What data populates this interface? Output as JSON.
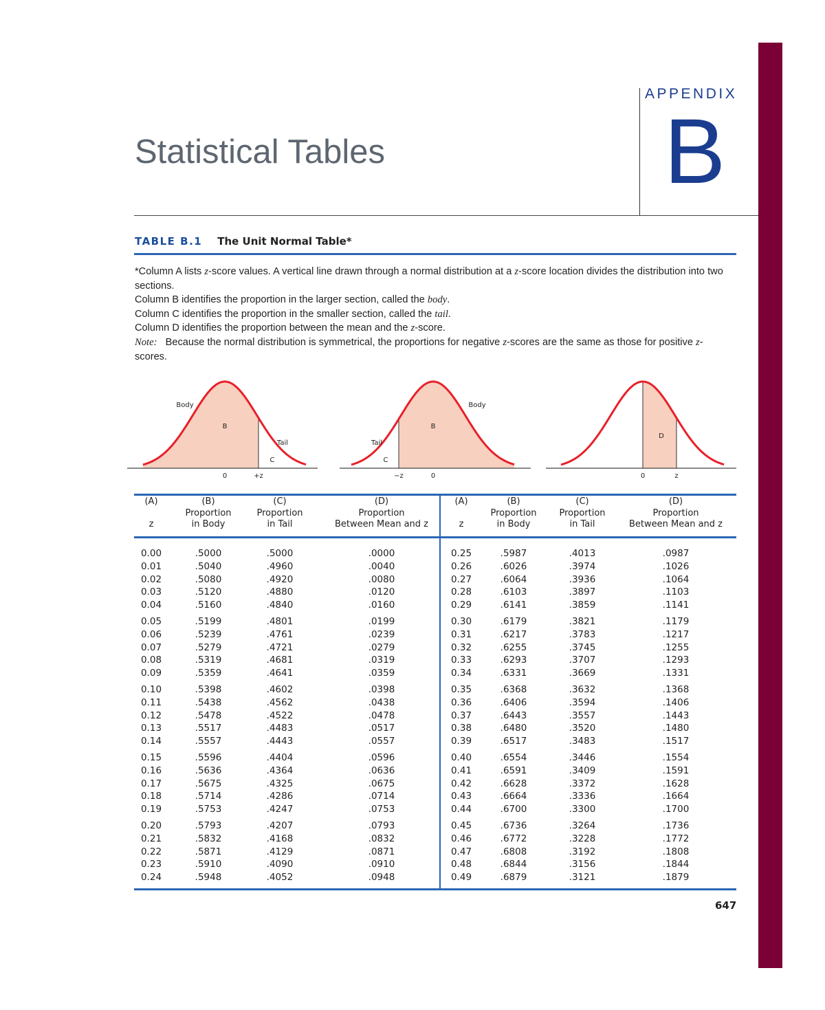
{
  "appendix": {
    "label": "APPENDIX",
    "letter": "B"
  },
  "page_title": "Statistical Tables",
  "table": {
    "number": "TABLE B.1",
    "title": "The Unit Normal Table*"
  },
  "intro": {
    "l1a": "*Column A lists ",
    "z": "z",
    "l1b": "-score values. A vertical line drawn through a normal distribution at a ",
    "l1c": "-score location divides the distribution into two sections.",
    "l2a": "Column B identifies the proportion in the larger section, called the ",
    "body": "body",
    "l2b": ".",
    "l3a": "Column C identifies the proportion in the smaller section, called the ",
    "tail": "tail",
    "l3b": ".",
    "l4a": "Column D identifies the proportion between the mean and the ",
    "l4b": "-score.",
    "note": "Note:",
    "l5a": "Because the normal distribution is symmetrical, the proportions for negative ",
    "l5b": "-scores are the same as those for positive ",
    "l5c": "-scores."
  },
  "figures": {
    "body": "Body",
    "tail": "Tail",
    "b": "B",
    "c": "C",
    "d": "D",
    "zero": "0",
    "plus_z": "+z",
    "minus_z": "−z",
    "z": "z",
    "curve_color": "#e8202a",
    "fill_color": "#f7d0bf"
  },
  "columns": [
    {
      "letter": "(A)",
      "line1": "",
      "line2": "z"
    },
    {
      "letter": "(B)",
      "line1": "Proportion",
      "line2": "in Body"
    },
    {
      "letter": "(C)",
      "line1": "Proportion",
      "line2": "in Tail"
    },
    {
      "letter": "(D)",
      "line1": "Proportion",
      "line2": "Between Mean and z"
    }
  ],
  "left_rows": [
    [
      "0.00",
      ".5000",
      ".5000",
      ".0000"
    ],
    [
      "0.01",
      ".5040",
      ".4960",
      ".0040"
    ],
    [
      "0.02",
      ".5080",
      ".4920",
      ".0080"
    ],
    [
      "0.03",
      ".5120",
      ".4880",
      ".0120"
    ],
    [
      "0.04",
      ".5160",
      ".4840",
      ".0160"
    ],
    [
      "0.05",
      ".5199",
      ".4801",
      ".0199"
    ],
    [
      "0.06",
      ".5239",
      ".4761",
      ".0239"
    ],
    [
      "0.07",
      ".5279",
      ".4721",
      ".0279"
    ],
    [
      "0.08",
      ".5319",
      ".4681",
      ".0319"
    ],
    [
      "0.09",
      ".5359",
      ".4641",
      ".0359"
    ],
    [
      "0.10",
      ".5398",
      ".4602",
      ".0398"
    ],
    [
      "0.11",
      ".5438",
      ".4562",
      ".0438"
    ],
    [
      "0.12",
      ".5478",
      ".4522",
      ".0478"
    ],
    [
      "0.13",
      ".5517",
      ".4483",
      ".0517"
    ],
    [
      "0.14",
      ".5557",
      ".4443",
      ".0557"
    ],
    [
      "0.15",
      ".5596",
      ".4404",
      ".0596"
    ],
    [
      "0.16",
      ".5636",
      ".4364",
      ".0636"
    ],
    [
      "0.17",
      ".5675",
      ".4325",
      ".0675"
    ],
    [
      "0.18",
      ".5714",
      ".4286",
      ".0714"
    ],
    [
      "0.19",
      ".5753",
      ".4247",
      ".0753"
    ],
    [
      "0.20",
      ".5793",
      ".4207",
      ".0793"
    ],
    [
      "0.21",
      ".5832",
      ".4168",
      ".0832"
    ],
    [
      "0.22",
      ".5871",
      ".4129",
      ".0871"
    ],
    [
      "0.23",
      ".5910",
      ".4090",
      ".0910"
    ],
    [
      "0.24",
      ".5948",
      ".4052",
      ".0948"
    ]
  ],
  "right_rows": [
    [
      "0.25",
      ".5987",
      ".4013",
      ".0987"
    ],
    [
      "0.26",
      ".6026",
      ".3974",
      ".1026"
    ],
    [
      "0.27",
      ".6064",
      ".3936",
      ".1064"
    ],
    [
      "0.28",
      ".6103",
      ".3897",
      ".1103"
    ],
    [
      "0.29",
      ".6141",
      ".3859",
      ".1141"
    ],
    [
      "0.30",
      ".6179",
      ".3821",
      ".1179"
    ],
    [
      "0.31",
      ".6217",
      ".3783",
      ".1217"
    ],
    [
      "0.32",
      ".6255",
      ".3745",
      ".1255"
    ],
    [
      "0.33",
      ".6293",
      ".3707",
      ".1293"
    ],
    [
      "0.34",
      ".6331",
      ".3669",
      ".1331"
    ],
    [
      "0.35",
      ".6368",
      ".3632",
      ".1368"
    ],
    [
      "0.36",
      ".6406",
      ".3594",
      ".1406"
    ],
    [
      "0.37",
      ".6443",
      ".3557",
      ".1443"
    ],
    [
      "0.38",
      ".6480",
      ".3520",
      ".1480"
    ],
    [
      "0.39",
      ".6517",
      ".3483",
      ".1517"
    ],
    [
      "0.40",
      ".6554",
      ".3446",
      ".1554"
    ],
    [
      "0.41",
      ".6591",
      ".3409",
      ".1591"
    ],
    [
      "0.42",
      ".6628",
      ".3372",
      ".1628"
    ],
    [
      "0.43",
      ".6664",
      ".3336",
      ".1664"
    ],
    [
      "0.44",
      ".6700",
      ".3300",
      ".1700"
    ],
    [
      "0.45",
      ".6736",
      ".3264",
      ".1736"
    ],
    [
      "0.46",
      ".6772",
      ".3228",
      ".1772"
    ],
    [
      "0.47",
      ".6808",
      ".3192",
      ".1808"
    ],
    [
      "0.48",
      ".6844",
      ".3156",
      ".1844"
    ],
    [
      "0.49",
      ".6879",
      ".3121",
      ".1879"
    ]
  ],
  "page_number": "647",
  "colors": {
    "accent_blue": "#2a66b4",
    "maroon_bar": "#7a0035",
    "heading_blue": "#1b3d8f"
  }
}
